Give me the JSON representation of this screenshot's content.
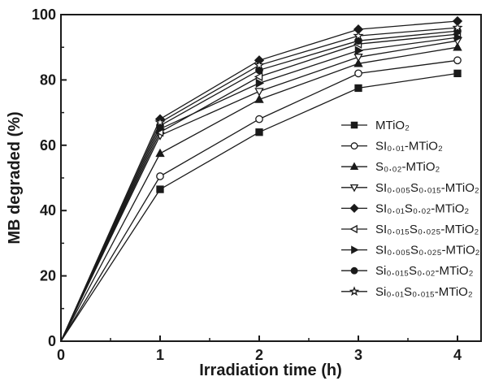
{
  "chart_data": {
    "type": "line",
    "title": "",
    "xlabel": "Irradiation time (h)",
    "ylabel": "MB degraded (%)",
    "xlim": [
      0,
      4.3
    ],
    "ylim": [
      0,
      100
    ],
    "xticks": [
      "0",
      "1",
      "2",
      "3",
      "4"
    ],
    "yticks": [
      "0",
      "20",
      "40",
      "60",
      "80",
      "100"
    ],
    "x": [
      0,
      1,
      2,
      3,
      4
    ],
    "grid": false,
    "legend_position": "right",
    "series": [
      {
        "name": "MTiO₂",
        "marker": "square-filled",
        "values": [
          0,
          46.5,
          64,
          77.5,
          82
        ]
      },
      {
        "name": "SI₀.₀₁-MTiO₂",
        "marker": "circle-open",
        "values": [
          0,
          50.5,
          68,
          82,
          86
        ]
      },
      {
        "name": "S₀.₀₂-MTiO₂",
        "marker": "triangle-up-filled",
        "values": [
          0,
          57.5,
          74,
          85,
          90
        ]
      },
      {
        "name": "SI₀.₀₀₅S₀.₀₁₅-MTiO₂",
        "marker": "triangle-down-open",
        "values": [
          0,
          63,
          76.5,
          87,
          92
        ]
      },
      {
        "name": "SI₀.₀₁S₀.₀₂-MTiO₂",
        "marker": "diamond-filled",
        "values": [
          0,
          68,
          86,
          95.5,
          98
        ]
      },
      {
        "name": "SI₀.₀₁₅S₀.₀₂₅-MTiO₂",
        "marker": "triangle-left-open",
        "values": [
          0,
          64,
          81,
          91,
          94
        ]
      },
      {
        "name": "SI₀.₀₀₅S₀.₀₂₅-MTiO₂",
        "marker": "triangle-right-filled",
        "values": [
          0,
          65,
          79,
          89,
          93
        ]
      },
      {
        "name": "Si₀.₀₁₅S₀.₀₂-MTiO₂",
        "marker": "circle-filled",
        "values": [
          0,
          66,
          83,
          92,
          95
        ]
      },
      {
        "name": "Si₀.₀₁S₀.₀₁₅-MTiO₂",
        "marker": "star-open",
        "values": [
          0,
          67,
          84.5,
          93.5,
          96
        ]
      }
    ]
  }
}
